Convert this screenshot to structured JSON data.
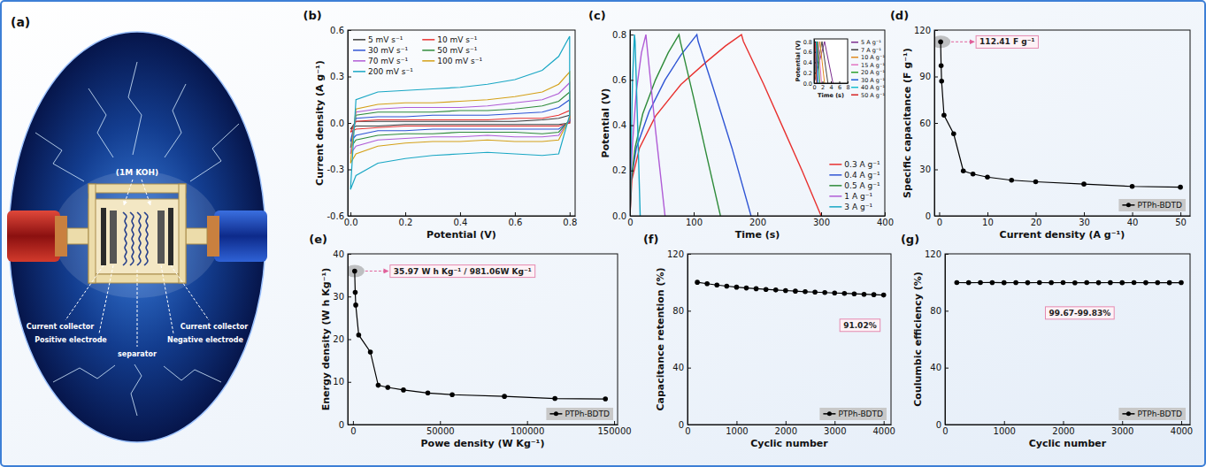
{
  "diagram": {
    "panel_label": "(a)",
    "electrolyte": "(1M KOH)",
    "labels": [
      "Current collector",
      "Positive electrode",
      "separator",
      "Current collector",
      "Negative electrode"
    ]
  },
  "chart_data": [
    {
      "panel_label": "(b)",
      "type": "line",
      "xlabel": "Potential (V)",
      "ylabel": "Current density (A g⁻¹)",
      "x": [
        0,
        0.02,
        0.1,
        0.2,
        0.3,
        0.4,
        0.5,
        0.6,
        0.7,
        0.76,
        0.8,
        0.8,
        0.76,
        0.7,
        0.6,
        0.5,
        0.4,
        0.3,
        0.2,
        0.1,
        0.02,
        0
      ],
      "xlim": [
        -0.01,
        0.82
      ],
      "xticks": [
        {
          "value": 0,
          "label": "0.0"
        },
        0.2,
        0.4,
        0.6,
        0.8
      ],
      "ylim": [
        -0.6,
        0.6
      ],
      "yticks": [
        -0.6,
        -0.3,
        {
          "value": 0,
          "label": "0.0"
        },
        0.3,
        0.6
      ],
      "legend": "upper left",
      "series": [
        {
          "name": "5 mV s⁻¹",
          "color": "#3a3a3a",
          "values": [
            -0.04,
            0.01,
            0.01,
            0.01,
            0.01,
            0.01,
            0.01,
            0.01,
            0.02,
            0.03,
            0.05,
            0,
            -0.01,
            -0.01,
            -0.01,
            -0.01,
            -0.01,
            -0.01,
            -0.01,
            -0.02,
            -0.02,
            -0.04
          ]
        },
        {
          "name": "10 mV s⁻¹",
          "color": "#e8312f",
          "values": [
            -0.06,
            0.01,
            0.02,
            0.02,
            0.02,
            0.02,
            0.02,
            0.03,
            0.03,
            0.05,
            0.08,
            0,
            -0.02,
            -0.02,
            -0.02,
            -0.02,
            -0.02,
            -0.02,
            -0.02,
            -0.03,
            -0.04,
            -0.06
          ]
        },
        {
          "name": "30 mV s⁻¹",
          "color": "#2f55d4",
          "values": [
            -0.12,
            0.03,
            0.04,
            0.04,
            0.05,
            0.05,
            0.05,
            0.06,
            0.07,
            0.1,
            0.15,
            0.01,
            -0.04,
            -0.04,
            -0.04,
            -0.04,
            -0.04,
            -0.04,
            -0.05,
            -0.05,
            -0.08,
            -0.12
          ]
        },
        {
          "name": "50 mV s⁻¹",
          "color": "#2e8b3a",
          "values": [
            -0.16,
            0.05,
            0.07,
            0.07,
            0.07,
            0.08,
            0.08,
            0.09,
            0.11,
            0.14,
            0.2,
            0.02,
            -0.06,
            -0.07,
            -0.06,
            -0.06,
            -0.06,
            -0.07,
            -0.07,
            -0.08,
            -0.11,
            -0.16
          ]
        },
        {
          "name": "70 mV s⁻¹",
          "color": "#b05cd6",
          "values": [
            -0.2,
            0.07,
            0.09,
            0.1,
            0.1,
            0.1,
            0.11,
            0.13,
            0.15,
            0.19,
            0.26,
            0.02,
            -0.08,
            -0.09,
            -0.09,
            -0.08,
            -0.09,
            -0.09,
            -0.1,
            -0.11,
            -0.15,
            -0.2
          ]
        },
        {
          "name": "100 mV s⁻¹",
          "color": "#d4a017",
          "values": [
            -0.26,
            0.09,
            0.12,
            0.13,
            0.13,
            0.14,
            0.15,
            0.17,
            0.2,
            0.25,
            0.33,
            0.03,
            -0.11,
            -0.12,
            -0.12,
            -0.11,
            -0.12,
            -0.12,
            -0.13,
            -0.15,
            -0.2,
            -0.26
          ]
        },
        {
          "name": "200 mV s⁻¹",
          "color": "#19a7c4",
          "values": [
            -0.43,
            0.15,
            0.2,
            0.21,
            0.22,
            0.23,
            0.25,
            0.28,
            0.34,
            0.43,
            0.56,
            0.05,
            -0.2,
            -0.21,
            -0.2,
            -0.19,
            -0.2,
            -0.21,
            -0.23,
            -0.26,
            -0.34,
            -0.43
          ]
        }
      ]
    },
    {
      "panel_label": "(c)",
      "type": "line",
      "xlabel": "Time (s)",
      "ylabel": "Potential (V)",
      "xlim": [
        0,
        400
      ],
      "xticks": [
        0,
        100,
        200,
        300,
        400
      ],
      "ylim": [
        0,
        0.82
      ],
      "yticks": [
        {
          "value": 0,
          "label": "0.0"
        },
        0.2,
        0.4,
        0.6,
        0.8
      ],
      "legend": "lower right",
      "series": [
        {
          "name": "0.3 A g⁻¹",
          "color": "#e8312f",
          "x": [
            0,
            3,
            15,
            40,
            80,
            120,
            150,
            175,
            178,
            210,
            240,
            270,
            300
          ],
          "values": [
            0,
            0.16,
            0.3,
            0.44,
            0.58,
            0.68,
            0.75,
            0.8,
            0.77,
            0.58,
            0.39,
            0.2,
            0
          ]
        },
        {
          "name": "0.4 A g⁻¹",
          "color": "#2f55d4",
          "x": [
            0,
            2,
            10,
            30,
            55,
            80,
            105,
            107,
            130,
            160,
            190
          ],
          "values": [
            0,
            0.16,
            0.3,
            0.46,
            0.6,
            0.71,
            0.8,
            0.77,
            0.57,
            0.3,
            0
          ]
        },
        {
          "name": "0.5 A g⁻¹",
          "color": "#2e8b3a",
          "x": [
            0,
            2,
            8,
            20,
            40,
            60,
            77,
            79,
            100,
            120,
            142
          ],
          "values": [
            0,
            0.16,
            0.3,
            0.45,
            0.6,
            0.72,
            0.8,
            0.77,
            0.52,
            0.27,
            0
          ]
        },
        {
          "name": "1 A g⁻¹",
          "color": "#b05cd6",
          "x": [
            0,
            1,
            4,
            10,
            18,
            25,
            26,
            40,
            55
          ],
          "values": [
            0,
            0.16,
            0.32,
            0.55,
            0.72,
            0.8,
            0.77,
            0.38,
            0
          ]
        },
        {
          "name": "3 A g⁻¹",
          "color": "#19a7c4",
          "x": [
            0,
            1,
            4,
            7,
            8,
            12,
            16
          ],
          "values": [
            0,
            0.2,
            0.6,
            0.8,
            0.77,
            0.4,
            0
          ]
        }
      ],
      "inset": {
        "type": "line",
        "xlabel": "Time (s)",
        "ylabel": "Potential (V)",
        "xlim": [
          0,
          8
        ],
        "xticks": [
          0,
          2,
          4,
          6,
          8
        ],
        "ylim": [
          0,
          0.85
        ],
        "yticks": [
          {
            "value": 0,
            "label": "0.0"
          },
          0.2,
          0.4,
          0.6,
          0.8
        ],
        "legend": "right",
        "series": [
          {
            "name": "5 A g⁻¹",
            "color": "#7b2d8e",
            "x": [
              0,
              2.5,
              4.5
            ],
            "values": [
              0,
              0.8,
              0
            ]
          },
          {
            "name": "7 A g⁻¹",
            "color": "#444444",
            "x": [
              0,
              1.9,
              3.3
            ],
            "values": [
              0,
              0.8,
              0
            ]
          },
          {
            "name": "10 A g⁻¹",
            "color": "#e08a1e",
            "x": [
              0,
              1.4,
              2.5
            ],
            "values": [
              0,
              0.8,
              0
            ]
          },
          {
            "name": "15 A g⁻¹",
            "color": "#e377c2",
            "x": [
              0,
              1.0,
              1.8
            ],
            "values": [
              0,
              0.8,
              0
            ]
          },
          {
            "name": "20 A g⁻¹",
            "color": "#2ca02c",
            "x": [
              0,
              0.8,
              1.4
            ],
            "values": [
              0,
              0.8,
              0
            ]
          },
          {
            "name": "30 A g⁻¹",
            "color": "#1f5fd6",
            "x": [
              0,
              0.55,
              1.0
            ],
            "values": [
              0,
              0.8,
              0
            ]
          },
          {
            "name": "40 A g⁻¹",
            "color": "#17becf",
            "x": [
              0,
              0.4,
              0.75
            ],
            "values": [
              0,
              0.8,
              0
            ]
          },
          {
            "name": "50 A g⁻¹",
            "color": "#d62728",
            "x": [
              0,
              0.3,
              0.6
            ],
            "values": [
              0,
              0.8,
              0
            ]
          }
        ]
      }
    },
    {
      "panel_label": "(d)",
      "type": "line",
      "xlabel": "Current density (A g⁻¹)",
      "ylabel": "Specific capacitance (F g⁻¹)",
      "x": [
        0.3,
        0.4,
        0.5,
        1,
        3,
        5,
        7,
        10,
        15,
        20,
        30,
        40,
        50
      ],
      "xlim": [
        -1,
        52
      ],
      "xticks": [
        0,
        10,
        20,
        30,
        40,
        50
      ],
      "ylim": [
        0,
        120
      ],
      "yticks": [
        0,
        30,
        60,
        90,
        120
      ],
      "legend": "lower right",
      "annotations": [
        "112.41 F g⁻¹"
      ],
      "series": [
        {
          "name": "PTPh-BDTD",
          "color": "#000000",
          "marker": "circle",
          "values": [
            112.41,
            97,
            87,
            65,
            53,
            29,
            27,
            25,
            23,
            22,
            20.5,
            19,
            18.5
          ]
        }
      ]
    },
    {
      "panel_label": "(e)",
      "type": "line",
      "xlabel": "Powe density (W Kg⁻¹)",
      "ylabel": "Energy density (W h Kg⁻¹)",
      "x": [
        981.06,
        1300,
        1600,
        3300,
        10000,
        14500,
        20000,
        29000,
        43000,
        57000,
        87000,
        116000,
        145000
      ],
      "xlim": [
        -3000,
        152000
      ],
      "xticks": [
        0,
        50000,
        100000,
        150000
      ],
      "ylim": [
        0,
        40
      ],
      "yticks": [
        0,
        10,
        20,
        30,
        40
      ],
      "legend": "lower right",
      "annotations": [
        "35.97 W h Kg⁻¹ / 981.06W Kg⁻¹"
      ],
      "series": [
        {
          "name": "PTPh-BDTD",
          "color": "#000000",
          "marker": "circle",
          "values": [
            35.97,
            31,
            28,
            21,
            17,
            9.2,
            8.7,
            8.1,
            7.4,
            7.0,
            6.6,
            6.1,
            6.0
          ]
        }
      ]
    },
    {
      "panel_label": "(f)",
      "type": "line",
      "xlabel": "Cyclic number",
      "ylabel": "Capacitance retention (%)",
      "x": [
        200,
        400,
        600,
        800,
        1000,
        1200,
        1400,
        1600,
        1800,
        2000,
        2200,
        2400,
        2600,
        2800,
        3000,
        3200,
        3400,
        3600,
        3800,
        4000
      ],
      "xlim": [
        0,
        4150
      ],
      "xticks": [
        0,
        1000,
        2000,
        3000,
        4000
      ],
      "ylim": [
        0,
        120
      ],
      "yticks": [
        0,
        40,
        80,
        120
      ],
      "legend": "lower right",
      "annotations": [
        "91.02%"
      ],
      "series": [
        {
          "name": "PTPh-BDTD",
          "color": "#000000",
          "marker": "circle",
          "values": [
            100,
            99.0,
            98.1,
            97.3,
            96.6,
            96.0,
            95.5,
            95.0,
            94.6,
            94.2,
            93.8,
            93.4,
            93.1,
            92.8,
            92.5,
            92.2,
            91.9,
            91.6,
            91.3,
            91.02
          ]
        }
      ]
    },
    {
      "panel_label": "(g)",
      "type": "line",
      "xlabel": "Cyclic number",
      "ylabel": "Coulumbic efficiency (%)",
      "x": [
        200,
        400,
        600,
        800,
        1000,
        1200,
        1400,
        1600,
        1800,
        2000,
        2200,
        2400,
        2600,
        2800,
        3000,
        3200,
        3400,
        3600,
        3800,
        4000
      ],
      "xlim": [
        0,
        4150
      ],
      "xticks": [
        0,
        1000,
        2000,
        3000,
        4000
      ],
      "ylim": [
        0,
        120
      ],
      "yticks": [
        0,
        40,
        80,
        120
      ],
      "legend": "lower right",
      "annotations": [
        "99.67-99.83%"
      ],
      "series": [
        {
          "name": "PTPh-BDTD",
          "color": "#000000",
          "marker": "circle",
          "values": [
            99.8,
            99.75,
            99.8,
            99.83,
            99.7,
            99.78,
            99.72,
            99.8,
            99.75,
            99.79,
            99.67,
            99.8,
            99.74,
            99.78,
            99.7,
            99.8,
            99.73,
            99.77,
            99.7,
            99.75
          ]
        }
      ]
    }
  ]
}
